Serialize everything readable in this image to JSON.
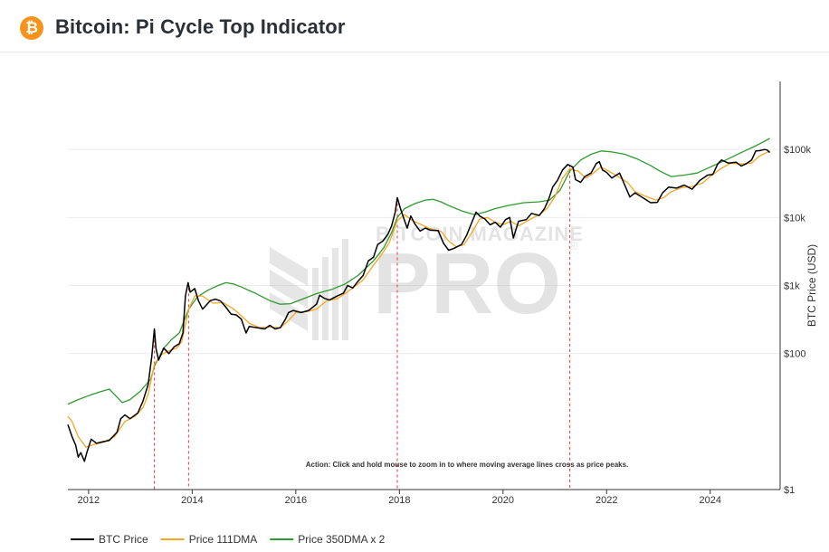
{
  "header": {
    "title": "Bitcoin: Pi Cycle Top Indicator",
    "logo_glyph": "₿",
    "logo_color": "#f7931a"
  },
  "watermark": {
    "line1": "BITCOIN MAGAZINE",
    "line2": "PRO",
    "registered": "®"
  },
  "annotation": "Action: Click and hold mouse to zoom in to where moving average lines cross as price peaks.",
  "chart_data": {
    "type": "line",
    "title": "Bitcoin: Pi Cycle Top Indicator",
    "xlabel": "",
    "ylabel": "BTC Price (USD)",
    "y_scale": "log",
    "ylim": [
      1,
      1000000
    ],
    "xlim": [
      2011.6,
      2025.35
    ],
    "x_ticks": [
      2012,
      2014,
      2016,
      2018,
      2020,
      2022,
      2024
    ],
    "x_tick_labels": [
      "2012",
      "2014",
      "2016",
      "2018",
      "2020",
      "2022",
      "2024"
    ],
    "y_ticks": [
      1,
      100,
      1000,
      10000,
      100000
    ],
    "y_tick_labels": [
      "$1",
      "$100",
      "$1k",
      "$10k",
      "$100k"
    ],
    "grid": true,
    "legend_position": "bottom-left",
    "cross_events": [
      2013.27,
      2013.93,
      2017.96,
      2021.29
    ],
    "series": [
      {
        "name": "BTC Price",
        "color": "#000000",
        "points": [
          [
            2011.6,
            9
          ],
          [
            2011.68,
            6
          ],
          [
            2011.75,
            4.5
          ],
          [
            2011.8,
            3
          ],
          [
            2011.85,
            3.5
          ],
          [
            2011.92,
            2.6
          ],
          [
            2011.97,
            3.6
          ],
          [
            2012.05,
            5.5
          ],
          [
            2012.15,
            4.8
          ],
          [
            2012.25,
            5
          ],
          [
            2012.4,
            5.3
          ],
          [
            2012.55,
            7
          ],
          [
            2012.62,
            11
          ],
          [
            2012.7,
            12.5
          ],
          [
            2012.8,
            11
          ],
          [
            2012.95,
            13.4
          ],
          [
            2013.05,
            20
          ],
          [
            2013.15,
            35
          ],
          [
            2013.22,
            90
          ],
          [
            2013.27,
            230
          ],
          [
            2013.3,
            120
          ],
          [
            2013.35,
            80
          ],
          [
            2013.45,
            120
          ],
          [
            2013.55,
            100
          ],
          [
            2013.65,
            125
          ],
          [
            2013.75,
            140
          ],
          [
            2013.82,
            200
          ],
          [
            2013.87,
            700
          ],
          [
            2013.92,
            1100
          ],
          [
            2013.96,
            800
          ],
          [
            2014.05,
            900
          ],
          [
            2014.12,
            600
          ],
          [
            2014.2,
            450
          ],
          [
            2014.35,
            600
          ],
          [
            2014.45,
            630
          ],
          [
            2014.55,
            590
          ],
          [
            2014.65,
            480
          ],
          [
            2014.75,
            380
          ],
          [
            2014.85,
            370
          ],
          [
            2014.95,
            320
          ],
          [
            2015.04,
            200
          ],
          [
            2015.1,
            250
          ],
          [
            2015.25,
            240
          ],
          [
            2015.4,
            230
          ],
          [
            2015.5,
            260
          ],
          [
            2015.6,
            230
          ],
          [
            2015.7,
            240
          ],
          [
            2015.8,
            320
          ],
          [
            2015.86,
            400
          ],
          [
            2015.95,
            430
          ],
          [
            2016.1,
            400
          ],
          [
            2016.25,
            430
          ],
          [
            2016.4,
            530
          ],
          [
            2016.46,
            720
          ],
          [
            2016.55,
            650
          ],
          [
            2016.65,
            610
          ],
          [
            2016.8,
            700
          ],
          [
            2016.92,
            770
          ],
          [
            2017.0,
            1000
          ],
          [
            2017.1,
            920
          ],
          [
            2017.2,
            1150
          ],
          [
            2017.3,
            1400
          ],
          [
            2017.4,
            2300
          ],
          [
            2017.5,
            2600
          ],
          [
            2017.58,
            4000
          ],
          [
            2017.68,
            4500
          ],
          [
            2017.78,
            5700
          ],
          [
            2017.85,
            7500
          ],
          [
            2017.92,
            12000
          ],
          [
            2017.96,
            19500
          ],
          [
            2018.02,
            13500
          ],
          [
            2018.1,
            9000
          ],
          [
            2018.15,
            7000
          ],
          [
            2018.22,
            10500
          ],
          [
            2018.3,
            8000
          ],
          [
            2018.4,
            6300
          ],
          [
            2018.5,
            7000
          ],
          [
            2018.6,
            6500
          ],
          [
            2018.75,
            6400
          ],
          [
            2018.85,
            4200
          ],
          [
            2018.95,
            3300
          ],
          [
            2019.05,
            3500
          ],
          [
            2019.2,
            4000
          ],
          [
            2019.3,
            5500
          ],
          [
            2019.4,
            8500
          ],
          [
            2019.48,
            12000
          ],
          [
            2019.55,
            10500
          ],
          [
            2019.65,
            9500
          ],
          [
            2019.75,
            7800
          ],
          [
            2019.85,
            8500
          ],
          [
            2019.95,
            7200
          ],
          [
            2020.05,
            9300
          ],
          [
            2020.13,
            10000
          ],
          [
            2020.2,
            5000
          ],
          [
            2020.3,
            8800
          ],
          [
            2020.45,
            9300
          ],
          [
            2020.55,
            11500
          ],
          [
            2020.7,
            10700
          ],
          [
            2020.8,
            13500
          ],
          [
            2020.88,
            18500
          ],
          [
            2020.96,
            28000
          ],
          [
            2021.05,
            35000
          ],
          [
            2021.15,
            50000
          ],
          [
            2021.25,
            60000
          ],
          [
            2021.35,
            55000
          ],
          [
            2021.4,
            36000
          ],
          [
            2021.5,
            33000
          ],
          [
            2021.58,
            40000
          ],
          [
            2021.7,
            45000
          ],
          [
            2021.8,
            62000
          ],
          [
            2021.86,
            66000
          ],
          [
            2021.92,
            50000
          ],
          [
            2022.0,
            46000
          ],
          [
            2022.1,
            38000
          ],
          [
            2022.25,
            45000
          ],
          [
            2022.35,
            30000
          ],
          [
            2022.45,
            20000
          ],
          [
            2022.55,
            23000
          ],
          [
            2022.7,
            19500
          ],
          [
            2022.85,
            16500
          ],
          [
            2022.98,
            16700
          ],
          [
            2023.08,
            23000
          ],
          [
            2023.2,
            28000
          ],
          [
            2023.35,
            27000
          ],
          [
            2023.5,
            30000
          ],
          [
            2023.65,
            26000
          ],
          [
            2023.8,
            35000
          ],
          [
            2023.95,
            42000
          ],
          [
            2024.05,
            43000
          ],
          [
            2024.15,
            62000
          ],
          [
            2024.22,
            70000
          ],
          [
            2024.35,
            63000
          ],
          [
            2024.5,
            65000
          ],
          [
            2024.6,
            57000
          ],
          [
            2024.7,
            62000
          ],
          [
            2024.8,
            70000
          ],
          [
            2024.88,
            95000
          ],
          [
            2024.95,
            96000
          ],
          [
            2025.05,
            100000
          ],
          [
            2025.1,
            98000
          ],
          [
            2025.15,
            90000
          ]
        ]
      },
      {
        "name": "Price 111DMA",
        "color": "#f5a623",
        "points": [
          [
            2011.6,
            12
          ],
          [
            2011.68,
            10
          ],
          [
            2011.8,
            6
          ],
          [
            2011.95,
            4.2
          ],
          [
            2012.1,
            4.6
          ],
          [
            2012.3,
            5
          ],
          [
            2012.5,
            6
          ],
          [
            2012.7,
            10
          ],
          [
            2012.9,
            12
          ],
          [
            2013.05,
            16
          ],
          [
            2013.15,
            25
          ],
          [
            2013.27,
            70
          ],
          [
            2013.4,
            95
          ],
          [
            2013.55,
            110
          ],
          [
            2013.7,
            120
          ],
          [
            2013.8,
            150
          ],
          [
            2013.93,
            450
          ],
          [
            2014.05,
            700
          ],
          [
            2014.2,
            700
          ],
          [
            2014.4,
            550
          ],
          [
            2014.6,
            560
          ],
          [
            2014.8,
            450
          ],
          [
            2014.95,
            360
          ],
          [
            2015.1,
            280
          ],
          [
            2015.3,
            240
          ],
          [
            2015.5,
            245
          ],
          [
            2015.7,
            240
          ],
          [
            2015.85,
            300
          ],
          [
            2016.0,
            400
          ],
          [
            2016.2,
            410
          ],
          [
            2016.4,
            450
          ],
          [
            2016.6,
            600
          ],
          [
            2016.8,
            640
          ],
          [
            2016.95,
            760
          ],
          [
            2017.1,
            920
          ],
          [
            2017.3,
            1200
          ],
          [
            2017.5,
            2000
          ],
          [
            2017.65,
            2800
          ],
          [
            2017.8,
            4200
          ],
          [
            2017.96,
            9000
          ],
          [
            2018.1,
            11000
          ],
          [
            2018.25,
            9000
          ],
          [
            2018.4,
            8000
          ],
          [
            2018.6,
            6800
          ],
          [
            2018.8,
            6300
          ],
          [
            2018.95,
            4500
          ],
          [
            2019.1,
            3700
          ],
          [
            2019.25,
            4000
          ],
          [
            2019.4,
            6000
          ],
          [
            2019.55,
            9500
          ],
          [
            2019.7,
            10000
          ],
          [
            2019.85,
            8500
          ],
          [
            2020.0,
            7800
          ],
          [
            2020.15,
            8800
          ],
          [
            2020.3,
            7500
          ],
          [
            2020.5,
            9200
          ],
          [
            2020.7,
            11000
          ],
          [
            2020.85,
            13500
          ],
          [
            2021.0,
            20000
          ],
          [
            2021.15,
            38000
          ],
          [
            2021.29,
            52000
          ],
          [
            2021.45,
            48000
          ],
          [
            2021.6,
            38000
          ],
          [
            2021.75,
            45000
          ],
          [
            2021.88,
            55000
          ],
          [
            2022.0,
            50000
          ],
          [
            2022.2,
            41000
          ],
          [
            2022.4,
            33000
          ],
          [
            2022.55,
            24000
          ],
          [
            2022.75,
            20500
          ],
          [
            2022.95,
            18000
          ],
          [
            2023.1,
            19500
          ],
          [
            2023.25,
            24000
          ],
          [
            2023.45,
            27500
          ],
          [
            2023.65,
            28500
          ],
          [
            2023.85,
            32000
          ],
          [
            2024.0,
            40000
          ],
          [
            2024.2,
            52000
          ],
          [
            2024.4,
            63000
          ],
          [
            2024.6,
            61000
          ],
          [
            2024.8,
            63000
          ],
          [
            2024.95,
            80000
          ],
          [
            2025.15,
            95000
          ]
        ]
      },
      {
        "name": "Price 350DMA x 2",
        "color": "#2e9b2e",
        "points": [
          [
            2011.6,
            18
          ],
          [
            2011.8,
            21
          ],
          [
            2012.0,
            24
          ],
          [
            2012.2,
            27
          ],
          [
            2012.4,
            30
          ],
          [
            2012.5,
            25
          ],
          [
            2012.65,
            19
          ],
          [
            2012.8,
            21
          ],
          [
            2013.0,
            28
          ],
          [
            2013.2,
            42
          ],
          [
            2013.27,
            65
          ],
          [
            2013.45,
            120
          ],
          [
            2013.6,
            160
          ],
          [
            2013.75,
            200
          ],
          [
            2013.93,
            450
          ],
          [
            2014.1,
            680
          ],
          [
            2014.3,
            850
          ],
          [
            2014.5,
            1000
          ],
          [
            2014.65,
            1100
          ],
          [
            2014.8,
            1050
          ],
          [
            2014.95,
            950
          ],
          [
            2015.2,
            780
          ],
          [
            2015.5,
            600
          ],
          [
            2015.7,
            530
          ],
          [
            2015.9,
            540
          ],
          [
            2016.1,
            620
          ],
          [
            2016.4,
            760
          ],
          [
            2016.7,
            880
          ],
          [
            2016.95,
            1050
          ],
          [
            2017.2,
            1400
          ],
          [
            2017.5,
            2300
          ],
          [
            2017.7,
            3600
          ],
          [
            2017.85,
            6000
          ],
          [
            2017.96,
            10000
          ],
          [
            2018.1,
            13500
          ],
          [
            2018.3,
            16000
          ],
          [
            2018.5,
            18000
          ],
          [
            2018.65,
            18500
          ],
          [
            2018.8,
            17000
          ],
          [
            2018.95,
            15000
          ],
          [
            2019.2,
            12500
          ],
          [
            2019.45,
            11000
          ],
          [
            2019.65,
            12000
          ],
          [
            2019.85,
            13500
          ],
          [
            2020.1,
            15000
          ],
          [
            2020.4,
            16500
          ],
          [
            2020.7,
            17000
          ],
          [
            2020.9,
            18000
          ],
          [
            2021.1,
            25000
          ],
          [
            2021.29,
            48000
          ],
          [
            2021.5,
            70000
          ],
          [
            2021.7,
            85000
          ],
          [
            2021.9,
            95000
          ],
          [
            2022.1,
            92000
          ],
          [
            2022.35,
            85000
          ],
          [
            2022.6,
            72000
          ],
          [
            2022.85,
            58000
          ],
          [
            2023.05,
            47000
          ],
          [
            2023.25,
            40000
          ],
          [
            2023.5,
            42000
          ],
          [
            2023.75,
            45000
          ],
          [
            2024.0,
            55000
          ],
          [
            2024.3,
            70000
          ],
          [
            2024.6,
            90000
          ],
          [
            2024.9,
            115000
          ],
          [
            2025.15,
            145000
          ]
        ]
      }
    ]
  }
}
